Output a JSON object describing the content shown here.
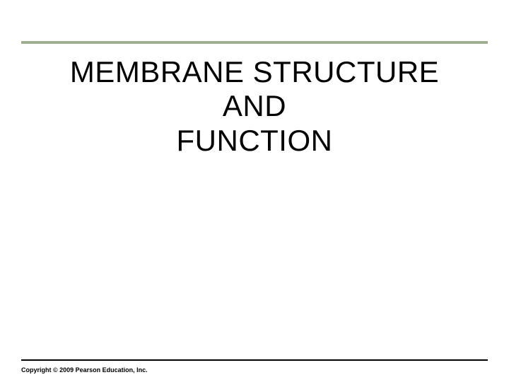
{
  "slide": {
    "title_line1": "MEMBRANE STRUCTURE AND",
    "title_line2": "FUNCTION",
    "footer_copyright": "Copyright © 2009 Pearson Education, Inc."
  },
  "styling": {
    "top_divider_color": "#9fae90",
    "top_divider_height": 4,
    "bottom_divider_color": "#000000",
    "bottom_divider_height": 2,
    "background_color": "#ffffff",
    "title_fontsize": 42,
    "title_color": "#000000",
    "title_weight": "normal",
    "footer_fontsize": 9,
    "footer_color": "#000000"
  }
}
